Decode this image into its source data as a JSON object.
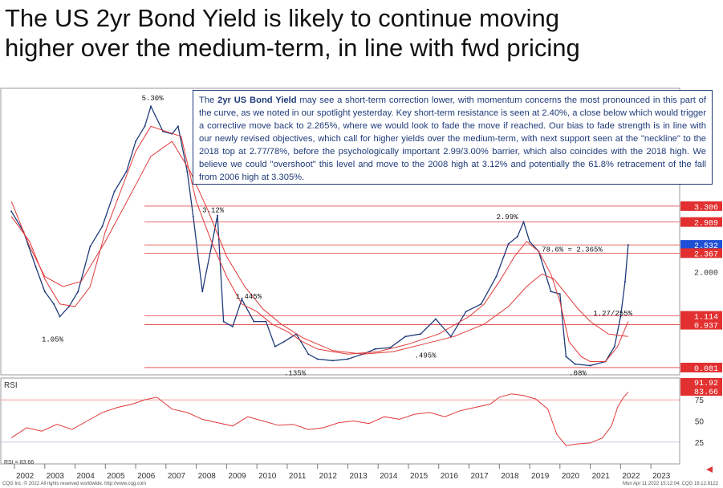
{
  "title_lines": [
    "The US 2yr Bond Yield is likely to continue moving",
    "higher over the medium-term, in line with fwd pricing"
  ],
  "note": {
    "lead": "The ",
    "bold": "2yr US Bond Yield",
    "body": " may see a short-term correction lower, with momentum concerns the most pronounced in this part of the curve, as we noted in our spotlight yesterday. Key short-term resistance is seen at 2.40%, a close below which would trigger a corrective move back to 2.265%, where we would look to fade the move if reached. Our bias to fade strength is in line with our newly revised objectives, which call for higher yields over the medium-term, with next support seen at the \"neckline\" to the 2018 top at 2.77/78%, before the psychologically important 2.99/3.00% barrier, which also coincides with the 2018 high. We believe we could \"overshoot\" this level and move to the 2008 high at 3.12% and potentially the 61.8% retracement of the fall from 2006 high at 3.305%."
  },
  "colors": {
    "price": "#1f3b7a",
    "ma": "#e03a3a",
    "level": "#e03a3a",
    "label_red": "#e23030",
    "label_blue": "#1f4fd6",
    "rsi": "#e03a3a",
    "rsi_band": "#8f8fd8"
  },
  "chart_data": [
    {
      "type": "line",
      "name": "2yr US Bond Yield weekly",
      "y_min": 0,
      "y_max": 5.5,
      "years": [
        "2002",
        "2003",
        "2004",
        "2005",
        "2006",
        "2007",
        "2008",
        "2009",
        "2010",
        "2011",
        "2012",
        "2013",
        "2014",
        "2015",
        "2016",
        "2017",
        "2018",
        "2019",
        "2020",
        "2021",
        "2022",
        "2023"
      ],
      "series": [
        {
          "key": "price",
          "x": [
            2001.9,
            2002.3,
            2002.7,
            2003.0,
            2003.3,
            2003.5,
            2003.8,
            2004.1,
            2004.5,
            2004.9,
            2005.3,
            2005.7,
            2006.0,
            2006.3,
            2006.5,
            2006.9,
            2007.2,
            2007.4,
            2007.7,
            2007.9,
            2008.2,
            2008.5,
            2008.7,
            2008.9,
            2009.2,
            2009.5,
            2009.9,
            2010.3,
            2010.6,
            2010.9,
            2011.3,
            2011.7,
            2012.0,
            2012.5,
            2013.0,
            2013.5,
            2013.9,
            2014.4,
            2014.9,
            2015.4,
            2015.9,
            2016.4,
            2016.9,
            2017.4,
            2017.9,
            2018.3,
            2018.6,
            2018.8,
            2019.0,
            2019.3,
            2019.7,
            2020.0,
            2020.2,
            2020.5,
            2021.0,
            2021.5,
            2021.8,
            2022.0,
            2022.15,
            2022.25
          ],
          "y": [
            3.2,
            2.8,
            2.1,
            1.6,
            1.35,
            1.1,
            1.3,
            1.6,
            2.5,
            2.9,
            3.6,
            4.0,
            4.6,
            4.9,
            5.3,
            4.8,
            4.75,
            4.9,
            4.0,
            3.1,
            1.6,
            2.5,
            3.12,
            1.0,
            0.9,
            1.445,
            1.0,
            1.0,
            0.5,
            0.6,
            0.75,
            0.35,
            0.25,
            0.22,
            0.25,
            0.35,
            0.45,
            0.48,
            0.7,
            0.75,
            1.05,
            0.7,
            1.2,
            1.35,
            1.9,
            2.55,
            2.7,
            2.99,
            2.6,
            2.4,
            1.6,
            1.55,
            0.3,
            0.15,
            0.12,
            0.2,
            0.5,
            1.1,
            1.8,
            2.532
          ]
        },
        {
          "key": "ma_fast",
          "x": [
            2001.9,
            2002.5,
            2003.0,
            2003.5,
            2004.0,
            2004.5,
            2005.0,
            2005.5,
            2006.0,
            2006.5,
            2007.0,
            2007.5,
            2008.0,
            2008.5,
            2009.0,
            2009.5,
            2010.0,
            2010.5,
            2011.0,
            2011.5,
            2012.0,
            2013.0,
            2014.0,
            2015.0,
            2016.0,
            2017.0,
            2017.5,
            2018.0,
            2018.5,
            2018.9,
            2019.3,
            2019.7,
            2020.0,
            2020.3,
            2020.7,
            2021.0,
            2021.5,
            2021.9,
            2022.25
          ],
          "y": [
            3.1,
            2.6,
            1.85,
            1.35,
            1.3,
            1.7,
            2.8,
            3.6,
            4.4,
            4.9,
            4.8,
            4.7,
            3.4,
            2.6,
            1.9,
            1.35,
            1.2,
            0.95,
            0.8,
            0.6,
            0.45,
            0.35,
            0.4,
            0.55,
            0.75,
            1.1,
            1.35,
            1.8,
            2.3,
            2.6,
            2.4,
            1.95,
            1.4,
            0.6,
            0.3,
            0.2,
            0.2,
            0.5,
            1.0
          ]
        },
        {
          "key": "ma_slow",
          "x": [
            2001.9,
            2002.5,
            2003.0,
            2003.6,
            2004.2,
            2005.0,
            2005.8,
            2006.5,
            2007.2,
            2007.8,
            2008.4,
            2009.0,
            2009.6,
            2010.2,
            2010.8,
            2011.5,
            2012.5,
            2013.5,
            2014.5,
            2015.5,
            2016.5,
            2017.5,
            2018.3,
            2018.9,
            2019.4,
            2019.8,
            2020.2,
            2020.6,
            2021.0,
            2021.6,
            2022.25
          ],
          "y": [
            3.4,
            2.5,
            1.9,
            1.7,
            1.8,
            2.6,
            3.5,
            4.3,
            4.6,
            4.0,
            3.2,
            2.3,
            1.7,
            1.25,
            0.95,
            0.68,
            0.42,
            0.35,
            0.4,
            0.55,
            0.7,
            0.95,
            1.3,
            1.7,
            1.95,
            1.85,
            1.55,
            1.25,
            1.0,
            0.75,
            0.7
          ]
        }
      ],
      "levels": [
        {
          "value": 3.306,
          "label": "3.306",
          "style": "red"
        },
        {
          "value": 2.989,
          "label": "2.989",
          "style": "red"
        },
        {
          "value": 2.532,
          "label": "2.532",
          "style": "blue"
        },
        {
          "value": 2.367,
          "label": "2.367",
          "style": "red"
        },
        {
          "value": 2.0,
          "label": "2.000",
          "style": "tick"
        },
        {
          "value": 1.114,
          "label": "1.114",
          "style": "red"
        },
        {
          "value": 0.937,
          "label": "0.937",
          "style": "red"
        },
        {
          "value": 0.081,
          "label": "0.081",
          "style": "red"
        }
      ],
      "annotations": [
        {
          "x": 2006.2,
          "y": 5.42,
          "text": "5.30%"
        },
        {
          "x": 2008.2,
          "y": 3.18,
          "text": "3.12%"
        },
        {
          "x": 2002.9,
          "y": 0.6,
          "text": "1.05%"
        },
        {
          "x": 2009.3,
          "y": 1.46,
          "text": "1.445%"
        },
        {
          "x": 2010.9,
          "y": -0.07,
          "text": ".135%"
        },
        {
          "x": 2015.2,
          "y": 0.28,
          "text": ".495%"
        },
        {
          "x": 2017.9,
          "y": 3.05,
          "text": "2.99%"
        },
        {
          "x": 2020.3,
          "y": -0.07,
          "text": ".08%"
        },
        {
          "x": 2019.4,
          "y": 2.4,
          "text": "78.6% = 2.365%"
        },
        {
          "x": 2021.1,
          "y": 1.12,
          "text": "1.27/255%"
        }
      ]
    },
    {
      "type": "line",
      "name": "RSI",
      "title": "RSI",
      "y_ticks": [
        25,
        50,
        75
      ],
      "last_labels": [
        "91.92",
        "83.66"
      ],
      "bottom_label": "RSI = 83.66",
      "x": [
        2001.9,
        2002.4,
        2002.9,
        2003.4,
        2003.9,
        2004.4,
        2004.9,
        2005.4,
        2005.9,
        2006.3,
        2006.7,
        2007.2,
        2007.7,
        2008.2,
        2008.7,
        2009.2,
        2009.7,
        2010.2,
        2010.7,
        2011.2,
        2011.7,
        2012.2,
        2012.7,
        2013.2,
        2013.7,
        2014.2,
        2014.7,
        2015.2,
        2015.7,
        2016.2,
        2016.7,
        2017.2,
        2017.7,
        2018.0,
        2018.4,
        2018.8,
        2019.2,
        2019.6,
        2019.9,
        2020.2,
        2020.6,
        2021.0,
        2021.4,
        2021.7,
        2021.9,
        2022.1,
        2022.25
      ],
      "y": [
        30,
        42,
        38,
        46,
        40,
        50,
        60,
        66,
        70,
        75,
        78,
        64,
        60,
        52,
        48,
        44,
        55,
        50,
        45,
        46,
        40,
        42,
        48,
        50,
        47,
        55,
        52,
        58,
        60,
        55,
        62,
        66,
        70,
        78,
        82,
        80,
        76,
        64,
        34,
        21,
        23,
        24,
        30,
        44,
        66,
        78,
        84
      ]
    }
  ],
  "bottom_axis": {
    "copyright": "CQG Inc. © 2022 All rights reserved worldwide. http://www.cqg.com",
    "timestamp": "Mon Apr 11 2022 15:12:04, CQG 19.12.8122"
  }
}
